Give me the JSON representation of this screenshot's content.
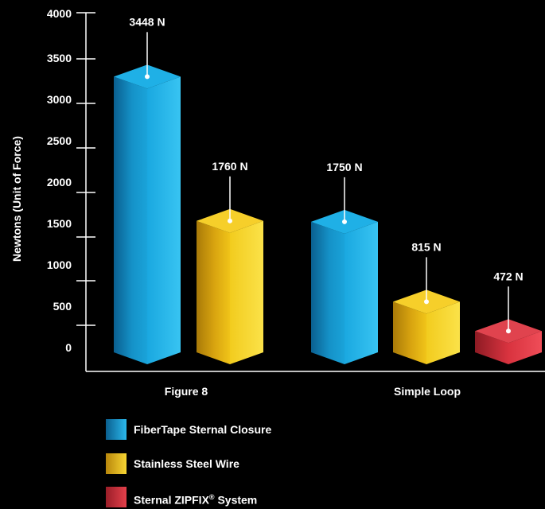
{
  "chart_data": {
    "type": "bar",
    "ylabel": "Newtons (Unit of Force)",
    "xlabel": "",
    "ylim": [
      0,
      4000
    ],
    "yticks": [
      "4000",
      "3500",
      "3000",
      "2500",
      "2000",
      "1500",
      "1000",
      "500",
      "0"
    ],
    "categories": [
      "Figure 8",
      "Simple Loop"
    ],
    "series": [
      {
        "name": "FiberTape Sternal Closure",
        "values": [
          3448,
          1750
        ],
        "labels": [
          "3448 N",
          "1750 N"
        ]
      },
      {
        "name": "Stainless Steel Wire",
        "values": [
          1760,
          815
        ],
        "labels": [
          "1760 N",
          "815 N"
        ]
      },
      {
        "name": "Sternal ZIPFIX® System",
        "values": [
          null,
          472
        ],
        "labels": [
          "",
          "472 N"
        ]
      }
    ],
    "legend_position": "bottom",
    "grid": false
  },
  "colors": {
    "fibertape": "#1aa3d9",
    "steel": "#f0c419",
    "zipfix": "#d9333f",
    "background": "#000000",
    "text": "#ffffff"
  },
  "legend": [
    {
      "label": "FiberTape Sternal Closure",
      "icon": "blue-swatch"
    },
    {
      "label": "Stainless Steel Wire",
      "icon": "gold-swatch"
    },
    {
      "label": "Sternal ZIPFIX",
      "trademark": "®",
      "suffix": " System",
      "icon": "red-swatch"
    }
  ]
}
